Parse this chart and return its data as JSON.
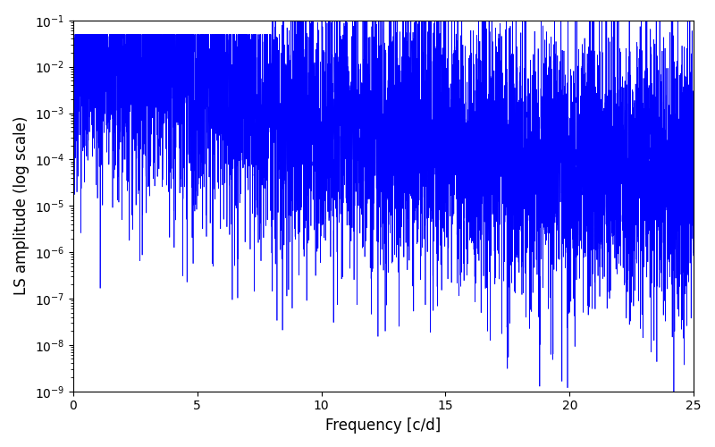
{
  "title": "",
  "xlabel": "Frequency [c/d]",
  "ylabel": "LS amplitude (log scale)",
  "xlim": [
    0,
    25
  ],
  "ylim": [
    1e-09,
    0.1
  ],
  "color": "#0000ff",
  "linewidth": 0.5,
  "figsize": [
    8.0,
    5.0
  ],
  "dpi": 100,
  "n_points": 6000,
  "freq_max": 25.0,
  "seed": 42,
  "background_color": "#ffffff"
}
